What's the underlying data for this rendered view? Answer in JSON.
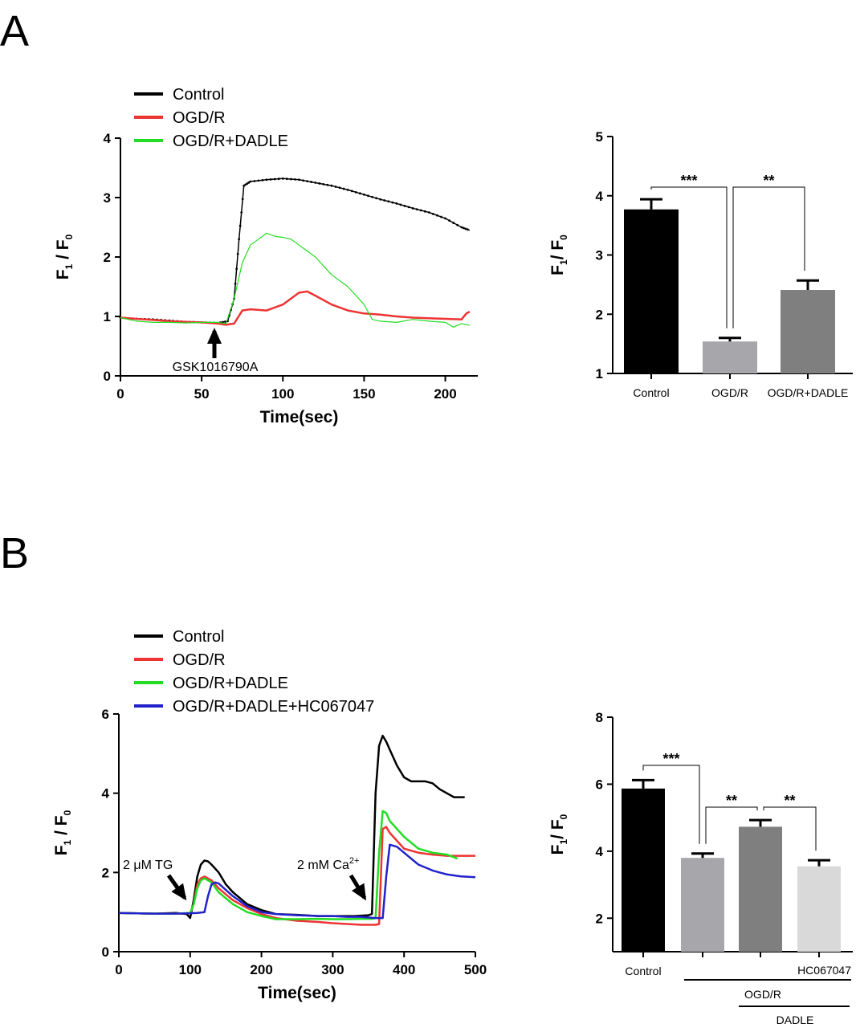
{
  "panels": [
    "A",
    "B"
  ],
  "chart_data": [
    {
      "id": "A_line",
      "type": "line",
      "xlabel": "Time(sec)",
      "ylabel": "F1 / F0",
      "xlim": [
        0,
        220
      ],
      "ylim": [
        0,
        4
      ],
      "xticks": [
        0,
        50,
        100,
        150,
        200
      ],
      "yticks": [
        0,
        1,
        2,
        3,
        4
      ],
      "legend_position": "top-left",
      "annotations": [
        {
          "text": "GSK1016790A",
          "x": 62
        }
      ],
      "series": [
        {
          "name": "Control",
          "color": "#000000",
          "x": [
            0,
            10,
            20,
            30,
            40,
            50,
            60,
            66,
            70,
            73,
            76,
            80,
            90,
            100,
            110,
            120,
            130,
            140,
            150,
            160,
            170,
            180,
            190,
            200,
            210,
            215
          ],
          "y": [
            0.98,
            0.96,
            0.95,
            0.93,
            0.91,
            0.9,
            0.89,
            0.92,
            1.3,
            2.3,
            3.2,
            3.27,
            3.3,
            3.32,
            3.3,
            3.25,
            3.2,
            3.13,
            3.05,
            2.97,
            2.9,
            2.82,
            2.75,
            2.65,
            2.5,
            2.45
          ]
        },
        {
          "name": "OGD/R",
          "color": "#ee3333",
          "x": [
            0,
            10,
            20,
            30,
            40,
            50,
            60,
            65,
            70,
            75,
            80,
            90,
            100,
            105,
            110,
            115,
            120,
            130,
            140,
            150,
            160,
            170,
            180,
            190,
            200,
            210,
            213,
            215
          ],
          "y": [
            0.98,
            0.96,
            0.94,
            0.92,
            0.91,
            0.9,
            0.88,
            0.86,
            0.88,
            1.1,
            1.12,
            1.1,
            1.2,
            1.3,
            1.4,
            1.42,
            1.35,
            1.2,
            1.1,
            1.05,
            1.03,
            1.0,
            0.98,
            0.97,
            0.96,
            0.95,
            1.05,
            1.08
          ]
        },
        {
          "name": "OGD/R+DADLE",
          "color": "#22dd22",
          "x": [
            0,
            10,
            20,
            30,
            40,
            50,
            60,
            65,
            70,
            75,
            80,
            85,
            90,
            95,
            100,
            105,
            110,
            120,
            130,
            140,
            150,
            155,
            160,
            170,
            180,
            190,
            200,
            205,
            210,
            215
          ],
          "y": [
            0.98,
            0.92,
            0.9,
            0.9,
            0.89,
            0.9,
            0.9,
            0.88,
            1.3,
            1.9,
            2.2,
            2.3,
            2.4,
            2.35,
            2.33,
            2.3,
            2.2,
            2.0,
            1.7,
            1.5,
            1.2,
            0.95,
            0.92,
            0.9,
            0.95,
            0.92,
            0.9,
            0.82,
            0.88,
            0.85
          ]
        }
      ]
    },
    {
      "id": "A_bar",
      "type": "bar",
      "xlabel": "",
      "ylabel": "F1 / F0",
      "ylim": [
        1,
        5
      ],
      "yticks": [
        1,
        2,
        3,
        4,
        5
      ],
      "categories": [
        "Control",
        "OGD/R",
        "OGD/R+DADLE"
      ],
      "values": [
        3.77,
        1.54,
        2.41
      ],
      "errors": [
        0.17,
        0.06,
        0.16
      ],
      "colors": [
        "#000000",
        "#a6a6ab",
        "#7f7f7f"
      ],
      "significance": [
        {
          "from": 0,
          "to": 1,
          "label": "***"
        },
        {
          "from": 1,
          "to": 2,
          "label": "**"
        }
      ]
    },
    {
      "id": "B_line",
      "type": "line",
      "xlabel": "Time(sec)",
      "ylabel": "F1 / F0",
      "xlim": [
        0,
        500
      ],
      "ylim": [
        0,
        6
      ],
      "xticks": [
        0,
        100,
        200,
        300,
        400,
        500
      ],
      "yticks": [
        0,
        2,
        4,
        6
      ],
      "legend_position": "top-left",
      "annotations": [
        {
          "text": "2 μM TG",
          "x": 95
        },
        {
          "text": "2 mM Ca",
          "sup": "2+",
          "x": 348
        }
      ],
      "series": [
        {
          "name": "Control",
          "color": "#000000",
          "x": [
            0,
            20,
            50,
            80,
            95,
            100,
            105,
            110,
            115,
            120,
            125,
            130,
            140,
            150,
            160,
            180,
            200,
            220,
            250,
            280,
            300,
            330,
            350,
            355,
            360,
            365,
            370,
            375,
            380,
            390,
            400,
            410,
            420,
            430,
            440,
            450,
            460,
            470,
            480,
            485
          ],
          "y": [
            0.98,
            0.97,
            0.96,
            0.98,
            0.95,
            0.85,
            1.3,
            1.9,
            2.2,
            2.3,
            2.28,
            2.2,
            2.0,
            1.7,
            1.5,
            1.2,
            1.05,
            0.95,
            0.93,
            0.9,
            0.9,
            0.9,
            0.92,
            0.95,
            4.0,
            5.2,
            5.45,
            5.3,
            5.1,
            4.7,
            4.4,
            4.3,
            4.3,
            4.3,
            4.25,
            4.1,
            4.0,
            3.9,
            3.9,
            3.9
          ]
        },
        {
          "name": "OGD/R",
          "color": "#ee3333",
          "x": [
            0,
            20,
            50,
            80,
            100,
            105,
            110,
            115,
            120,
            130,
            140,
            160,
            180,
            200,
            220,
            250,
            280,
            300,
            320,
            340,
            360,
            365,
            370,
            375,
            380,
            400,
            420,
            440,
            460,
            480,
            500
          ],
          "y": [
            0.98,
            0.97,
            0.96,
            0.96,
            0.97,
            1.2,
            1.7,
            1.85,
            1.9,
            1.8,
            1.6,
            1.3,
            1.1,
            0.95,
            0.85,
            0.78,
            0.75,
            0.72,
            0.7,
            0.68,
            0.68,
            0.7,
            3.1,
            3.15,
            3.0,
            2.6,
            2.5,
            2.45,
            2.42,
            2.42,
            2.42
          ]
        },
        {
          "name": "OGD/R+DADLE",
          "color": "#22dd22",
          "x": [
            0,
            20,
            50,
            80,
            100,
            105,
            110,
            115,
            120,
            130,
            140,
            160,
            180,
            200,
            220,
            250,
            280,
            300,
            320,
            340,
            355,
            360,
            365,
            370,
            375,
            380,
            400,
            420,
            440,
            460,
            475
          ],
          "y": [
            0.98,
            0.97,
            0.96,
            0.96,
            0.98,
            1.2,
            1.6,
            1.8,
            1.85,
            1.75,
            1.5,
            1.2,
            1.0,
            0.9,
            0.82,
            0.82,
            0.83,
            0.82,
            0.82,
            0.83,
            0.83,
            0.85,
            2.5,
            3.55,
            3.5,
            3.3,
            2.9,
            2.6,
            2.5,
            2.45,
            2.35
          ]
        },
        {
          "name": "OGD/R+DADLE+HC067047",
          "color": "#2222cc",
          "x": [
            0,
            20,
            50,
            80,
            100,
            110,
            120,
            125,
            130,
            135,
            140,
            160,
            180,
            200,
            220,
            250,
            280,
            300,
            320,
            340,
            360,
            370,
            375,
            380,
            390,
            400,
            420,
            440,
            460,
            480,
            500
          ],
          "y": [
            0.98,
            0.97,
            0.96,
            0.96,
            0.97,
            0.98,
            1.0,
            1.4,
            1.7,
            1.75,
            1.72,
            1.4,
            1.15,
            1.0,
            0.95,
            0.92,
            0.9,
            0.9,
            0.88,
            0.88,
            0.85,
            0.85,
            1.9,
            2.7,
            2.65,
            2.5,
            2.2,
            2.05,
            1.95,
            1.9,
            1.88
          ]
        }
      ]
    },
    {
      "id": "B_bar",
      "type": "bar",
      "xlabel": "",
      "ylabel": "F1 / F0",
      "ylim": [
        1,
        8
      ],
      "yticks": [
        2,
        4,
        6,
        8
      ],
      "categories": [
        "Control",
        "",
        "",
        ""
      ],
      "group_labels": [
        "HC067047",
        "OGD/R",
        "DADLE"
      ],
      "values": [
        5.87,
        3.8,
        4.73,
        3.55
      ],
      "errors": [
        0.25,
        0.13,
        0.2,
        0.18
      ],
      "colors": [
        "#000000",
        "#a6a6ab",
        "#7f7f7f",
        "#d9d9d9"
      ],
      "significance": [
        {
          "from": 0,
          "to": 1,
          "label": "***"
        },
        {
          "from": 1,
          "to": 2,
          "label": "**"
        },
        {
          "from": 2,
          "to": 3,
          "label": "**"
        }
      ]
    }
  ]
}
